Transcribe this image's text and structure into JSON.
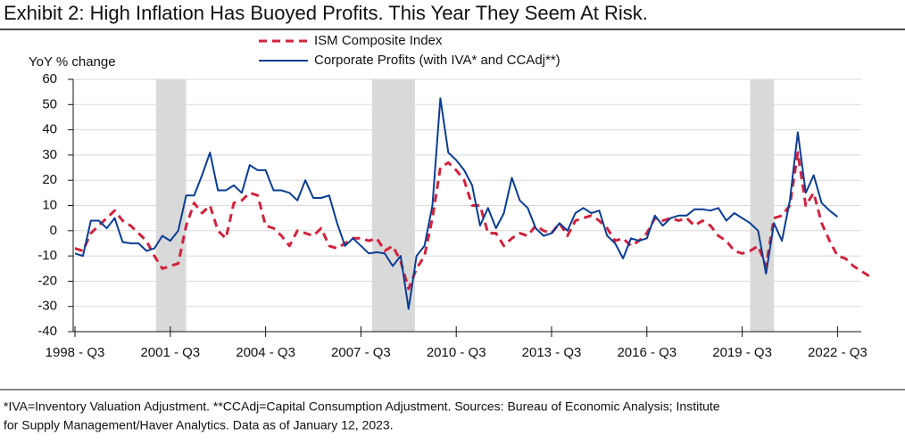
{
  "chart_data": {
    "type": "line",
    "title": "Exhibit 2: High Inflation Has Buoyed Profits. This Year They Seem At Risk.",
    "y_label": "YoY % change",
    "footnote": [
      "*IVA=Inventory Valuation Adjustment. **CCAdj=Capital Consumption Adjustment. Sources: Bureau of Economic Analysis; Institute",
      "for Supply Management/Haver Analytics. Data as of January 12, 2023."
    ],
    "categories": [
      "1998 - Q3",
      null,
      null,
      null,
      null,
      null,
      null,
      null,
      null,
      null,
      null,
      null,
      "2001 - Q3",
      null,
      null,
      null,
      null,
      null,
      null,
      null,
      null,
      null,
      null,
      null,
      "2004 - Q3",
      null,
      null,
      null,
      null,
      null,
      null,
      null,
      null,
      null,
      null,
      null,
      "2007 - Q3",
      null,
      null,
      null,
      null,
      null,
      null,
      null,
      null,
      null,
      null,
      null,
      "2010 - Q3",
      null,
      null,
      null,
      null,
      null,
      null,
      null,
      null,
      null,
      null,
      null,
      "2013 - Q3",
      null,
      null,
      null,
      null,
      null,
      null,
      null,
      null,
      null,
      null,
      null,
      "2016 - Q3",
      null,
      null,
      null,
      null,
      null,
      null,
      null,
      null,
      null,
      null,
      null,
      "2019 - Q3",
      null,
      null,
      null,
      null,
      null,
      null,
      null,
      null,
      null,
      null,
      null,
      "2022 - Q3",
      null,
      null,
      null,
      null
    ],
    "series": [
      {
        "name": "ISM Composite Index",
        "color": "#d0223d",
        "style": "dashed",
        "values": [
          -7,
          -8,
          -1,
          2,
          5,
          8,
          4,
          2,
          -1,
          -4,
          -10,
          -15,
          -14,
          -13,
          2,
          11,
          7,
          10,
          0,
          -3,
          11,
          12,
          15,
          14,
          2,
          1,
          -2,
          -6,
          0,
          -1,
          -2,
          1,
          -6,
          -7,
          -5,
          -3,
          -3,
          -4,
          -3,
          -8,
          -6,
          -12,
          -23,
          -15,
          -10,
          5,
          25,
          27,
          24,
          20,
          10,
          10,
          -1,
          -1,
          -6,
          -3,
          -1,
          -2,
          2,
          0,
          -1,
          3,
          -2,
          4,
          5,
          6,
          4,
          1,
          -4,
          -3,
          -6,
          -4,
          -1,
          5,
          4,
          5,
          4,
          5,
          2,
          4,
          2,
          -2,
          -4,
          -8,
          -9,
          -8,
          -6,
          -14,
          5,
          6,
          10,
          31,
          10,
          15,
          3,
          -4,
          -10,
          -11,
          -14,
          -16,
          -18
        ]
      },
      {
        "name": "Corporate Profits (with IVA* and CCAdj**)",
        "color": "#0a3d91",
        "style": "solid",
        "values": [
          -9,
          -10,
          4,
          4,
          1,
          5,
          -4.5,
          -5,
          -5,
          -8,
          -7,
          -2,
          -4,
          0,
          14,
          14,
          22,
          31,
          16,
          16,
          18,
          15,
          26,
          24,
          24,
          16,
          16,
          15,
          12,
          20,
          13,
          13,
          14,
          3,
          -6,
          -3,
          -6,
          -9,
          -8.5,
          -9,
          -14,
          -10,
          -31,
          -10,
          -6,
          10,
          52.5,
          31,
          28,
          24,
          18,
          2,
          9,
          1,
          7,
          21,
          12,
          9,
          1,
          -2,
          -1,
          3,
          0,
          7,
          9,
          7,
          8,
          -2,
          -5,
          -11,
          -3,
          -4,
          -3,
          6,
          2,
          5,
          6,
          6,
          8.5,
          8.5,
          8,
          9,
          4,
          7,
          5,
          3,
          0,
          -17,
          3,
          -4,
          12,
          39,
          15,
          22,
          11,
          8,
          5.5,
          null,
          null,
          null,
          null
        ]
      }
    ],
    "shaded_periods": [
      [
        10.2,
        14.0
      ],
      [
        37.4,
        42.8
      ],
      [
        85.0,
        88.0
      ]
    ],
    "shade_color": "#d9d9d9",
    "ylim": [
      -40,
      60
    ],
    "yticks": [
      -40,
      -30,
      -20,
      -10,
      0,
      10,
      20,
      30,
      40,
      50,
      60
    ],
    "grid": true
  }
}
